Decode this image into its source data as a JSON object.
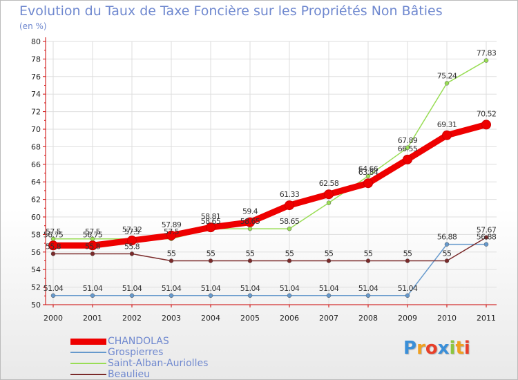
{
  "title": "Evolution du Taux de Taxe Foncière sur les Propriétés Non Bâties",
  "subtitle": "(en %)",
  "logo_text": "Proxiti",
  "colors": {
    "title": "#6f88cf",
    "axis": "#cc0000",
    "grid": "#dddddd",
    "CHANDOLAS": "#ee0000",
    "Grospierres": "#6699cc",
    "Saint-Alban-Auriolles": "#99dd55",
    "Beaulieu": "#7a2a2a"
  },
  "chart_data": {
    "type": "line",
    "title": "Evolution du Taux de Taxe Foncière sur les Propriétés Non Bâties",
    "ylabel": "(en %)",
    "xlabel": "",
    "ylim": [
      50,
      80
    ],
    "yticks": [
      50,
      52,
      54,
      56,
      58,
      60,
      62,
      64,
      66,
      68,
      70,
      72,
      74,
      76,
      78,
      80
    ],
    "categories": [
      "2000",
      "2001",
      "2002",
      "2003",
      "2004",
      "2005",
      "2006",
      "2007",
      "2008",
      "2009",
      "2010",
      "2011"
    ],
    "grid": true,
    "legend": "bottom-left",
    "series": [
      {
        "name": "CHANDOLAS",
        "values": [
          56.75,
          56.75,
          57.32,
          57.89,
          58.81,
          59.4,
          61.33,
          62.58,
          63.84,
          66.55,
          69.31,
          70.52
        ],
        "labels": [
          "56.75",
          "56.75",
          "57.32",
          "57.89",
          "58.81",
          "59.4",
          "61.33",
          "62.58",
          "63.84",
          "66.55",
          "69.31",
          "70.52"
        ]
      },
      {
        "name": "Grospierres",
        "values": [
          51.04,
          51.04,
          51.04,
          51.04,
          51.04,
          51.04,
          51.04,
          51.04,
          51.04,
          51.04,
          56.88,
          56.88
        ],
        "labels": [
          "51.04",
          "51.04",
          "51.04",
          "51.04",
          "51.04",
          "51.04",
          "51.04",
          "51.04",
          "51.04",
          "51.04",
          "56.88",
          "56.88"
        ]
      },
      {
        "name": "Saint-Alban-Auriolles",
        "values": [
          57.5,
          57.5,
          57.5,
          57.5,
          58.65,
          58.65,
          58.65,
          61.6,
          64.66,
          67.89,
          75.24,
          77.83
        ],
        "labels": [
          "57.5",
          "57.5",
          "57.5",
          "57.5",
          "58.65",
          "58.65",
          "58.65",
          "",
          "64.66",
          "67.89",
          "75.24",
          "77.83"
        ]
      },
      {
        "name": "Beaulieu",
        "values": [
          55.8,
          55.8,
          55.8,
          55,
          55,
          55,
          55,
          55,
          55,
          55,
          55,
          57.67
        ],
        "labels": [
          "55.8",
          "55.8",
          "55.8",
          "55",
          "55",
          "55",
          "55",
          "55",
          "55",
          "55",
          "55",
          "57.67"
        ]
      }
    ]
  }
}
